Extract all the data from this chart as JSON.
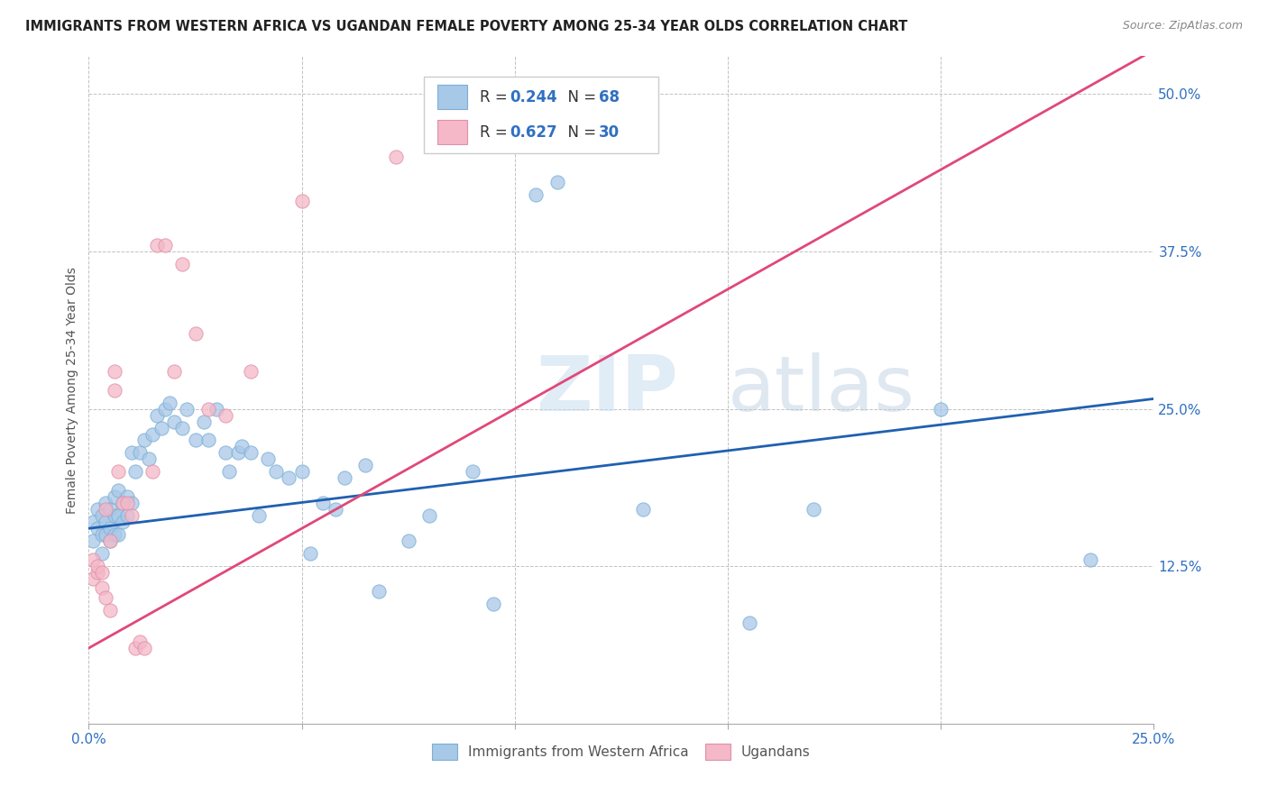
{
  "title": "IMMIGRANTS FROM WESTERN AFRICA VS UGANDAN FEMALE POVERTY AMONG 25-34 YEAR OLDS CORRELATION CHART",
  "source": "Source: ZipAtlas.com",
  "ylabel": "Female Poverty Among 25-34 Year Olds",
  "xlim": [
    0.0,
    0.25
  ],
  "ylim": [
    0.0,
    0.53
  ],
  "xticks": [
    0.0,
    0.05,
    0.1,
    0.15,
    0.2,
    0.25
  ],
  "yticks": [
    0.125,
    0.25,
    0.375,
    0.5
  ],
  "legend1_R": "0.244",
  "legend1_N": "68",
  "legend2_R": "0.627",
  "legend2_N": "30",
  "blue_scatter_color": "#a8c8e8",
  "pink_scatter_color": "#f4b8c8",
  "line_blue": "#2060b0",
  "line_pink": "#e04878",
  "text_blue": "#3070c0",
  "label_color": "#555555",
  "watermark": "ZIPatlas",
  "blue_scatter_x": [
    0.001,
    0.001,
    0.002,
    0.002,
    0.003,
    0.003,
    0.003,
    0.004,
    0.004,
    0.004,
    0.005,
    0.005,
    0.005,
    0.006,
    0.006,
    0.006,
    0.007,
    0.007,
    0.007,
    0.008,
    0.008,
    0.009,
    0.009,
    0.01,
    0.01,
    0.011,
    0.012,
    0.013,
    0.014,
    0.015,
    0.016,
    0.017,
    0.018,
    0.019,
    0.02,
    0.022,
    0.023,
    0.025,
    0.027,
    0.028,
    0.03,
    0.032,
    0.033,
    0.035,
    0.036,
    0.038,
    0.04,
    0.042,
    0.044,
    0.047,
    0.05,
    0.052,
    0.055,
    0.058,
    0.06,
    0.065,
    0.068,
    0.075,
    0.08,
    0.09,
    0.095,
    0.105,
    0.11,
    0.13,
    0.155,
    0.17,
    0.2,
    0.235
  ],
  "blue_scatter_y": [
    0.16,
    0.145,
    0.155,
    0.17,
    0.135,
    0.15,
    0.165,
    0.15,
    0.16,
    0.175,
    0.145,
    0.155,
    0.17,
    0.15,
    0.165,
    0.18,
    0.15,
    0.165,
    0.185,
    0.16,
    0.175,
    0.165,
    0.18,
    0.175,
    0.215,
    0.2,
    0.215,
    0.225,
    0.21,
    0.23,
    0.245,
    0.235,
    0.25,
    0.255,
    0.24,
    0.235,
    0.25,
    0.225,
    0.24,
    0.225,
    0.25,
    0.215,
    0.2,
    0.215,
    0.22,
    0.215,
    0.165,
    0.21,
    0.2,
    0.195,
    0.2,
    0.135,
    0.175,
    0.17,
    0.195,
    0.205,
    0.105,
    0.145,
    0.165,
    0.2,
    0.095,
    0.42,
    0.43,
    0.17,
    0.08,
    0.17,
    0.25,
    0.13
  ],
  "pink_scatter_x": [
    0.001,
    0.001,
    0.002,
    0.002,
    0.003,
    0.003,
    0.004,
    0.004,
    0.005,
    0.005,
    0.006,
    0.006,
    0.007,
    0.008,
    0.009,
    0.01,
    0.011,
    0.012,
    0.013,
    0.015,
    0.016,
    0.018,
    0.02,
    0.022,
    0.025,
    0.028,
    0.032,
    0.038,
    0.05,
    0.072
  ],
  "pink_scatter_y": [
    0.13,
    0.115,
    0.12,
    0.125,
    0.12,
    0.108,
    0.1,
    0.17,
    0.145,
    0.09,
    0.28,
    0.265,
    0.2,
    0.175,
    0.175,
    0.165,
    0.06,
    0.065,
    0.06,
    0.2,
    0.38,
    0.38,
    0.28,
    0.365,
    0.31,
    0.25,
    0.245,
    0.28,
    0.415,
    0.45
  ],
  "blue_line_x0": 0.0,
  "blue_line_x1": 0.25,
  "blue_line_y0": 0.155,
  "blue_line_y1": 0.258,
  "pink_line_x0": 0.0,
  "pink_line_x1": 0.25,
  "pink_line_y0": 0.06,
  "pink_line_y1": 0.535
}
